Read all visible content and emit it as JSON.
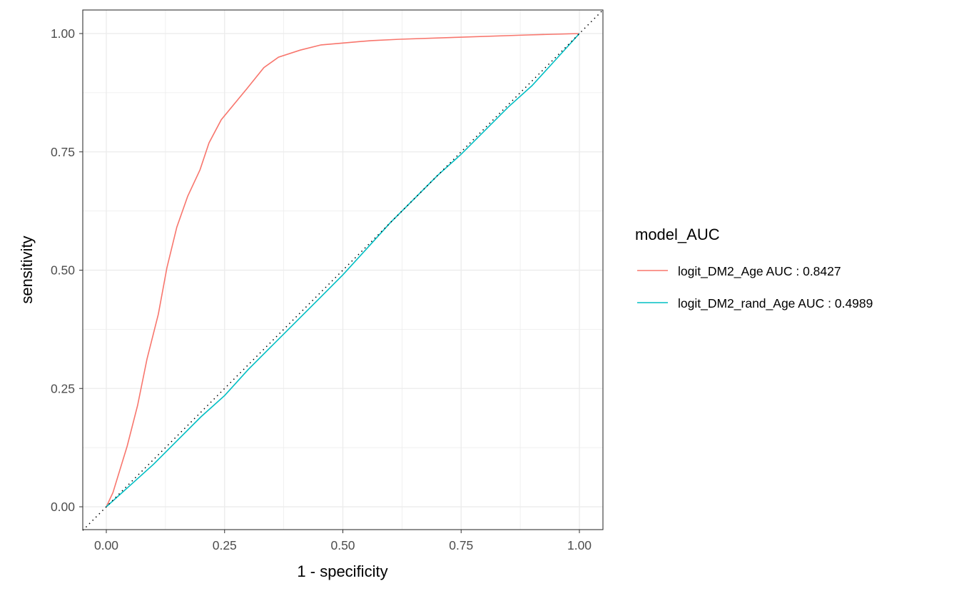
{
  "chart_data": {
    "type": "line",
    "title": "",
    "xlabel": "1 - specificity",
    "ylabel": "sensitivity",
    "xlim": [
      -0.05,
      1.05
    ],
    "ylim": [
      -0.05,
      1.05
    ],
    "xticks": [
      "0.00",
      "0.25",
      "0.50",
      "0.75",
      "1.00"
    ],
    "yticks": [
      "0.00",
      "0.25",
      "0.50",
      "0.75",
      "1.00"
    ],
    "grid": true,
    "reference_line": "diagonal dotted y = x",
    "legend": {
      "title": "model_AUC",
      "position": "right"
    },
    "series": [
      {
        "name": "logit_DM2_Age AUC : 0.8427",
        "color": "#F8766D",
        "x": [
          0,
          0.014,
          0.044,
          0.066,
          0.086,
          0.11,
          0.128,
          0.149,
          0.172,
          0.198,
          0.217,
          0.243,
          0.296,
          0.333,
          0.364,
          0.41,
          0.454,
          0.5,
          0.56,
          0.62,
          0.74,
          0.89,
          1
        ],
        "y": [
          0,
          0.03,
          0.128,
          0.214,
          0.312,
          0.407,
          0.505,
          0.591,
          0.656,
          0.712,
          0.769,
          0.818,
          0.882,
          0.928,
          0.95,
          0.965,
          0.976,
          0.98,
          0.985,
          0.988,
          0.992,
          0.997,
          1
        ]
      },
      {
        "name": "logit_DM2_rand_Age AUC : 0.4989",
        "color": "#00BFC4",
        "x": [
          0,
          0.05,
          0.1,
          0.15,
          0.2,
          0.25,
          0.3,
          0.35,
          0.4,
          0.45,
          0.5,
          0.55,
          0.6,
          0.65,
          0.7,
          0.75,
          0.8,
          0.85,
          0.9,
          0.95,
          1
        ],
        "y": [
          0,
          0.045,
          0.09,
          0.14,
          0.19,
          0.235,
          0.29,
          0.34,
          0.39,
          0.44,
          0.49,
          0.545,
          0.6,
          0.65,
          0.7,
          0.745,
          0.795,
          0.845,
          0.89,
          0.945,
          1
        ]
      }
    ]
  }
}
